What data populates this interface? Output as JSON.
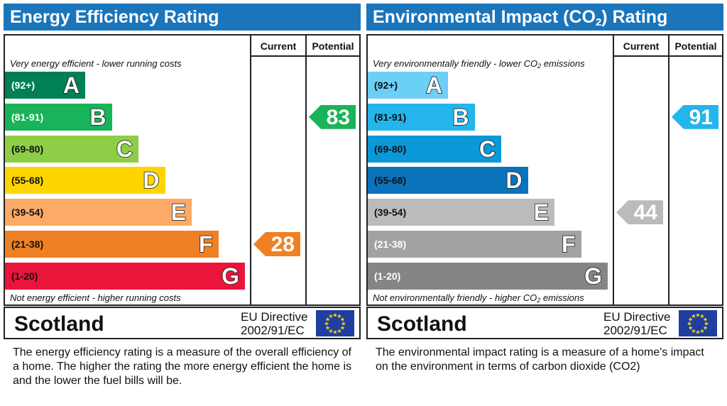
{
  "chart_data": [
    {
      "type": "bar",
      "title": "Energy Efficiency Rating",
      "categories": [
        "A",
        "B",
        "C",
        "D",
        "E",
        "F",
        "G"
      ],
      "ranges": [
        "(92+)",
        "(81-91)",
        "(69-80)",
        "(55-68)",
        "(39-54)",
        "(21-38)",
        "(1-20)"
      ],
      "colors": [
        "#008054",
        "#19b459",
        "#8dce46",
        "#ffd500",
        "#fcaa65",
        "#ef8023",
        "#e9153b"
      ],
      "columns": {
        "current": "Current",
        "potential": "Potential"
      },
      "current": 28,
      "potential": 83,
      "current_band": "F",
      "potential_band": "B",
      "current_color": "#ef8023",
      "potential_color": "#19b459",
      "top_note": "Very energy efficient - lower running costs",
      "bottom_note": "Not energy efficient - higher running costs"
    },
    {
      "type": "bar",
      "title": "Environmental Impact (CO2) Rating",
      "title_parts": [
        "Environmental Impact (CO",
        "2",
        ") Rating"
      ],
      "categories": [
        "A",
        "B",
        "C",
        "D",
        "E",
        "F",
        "G"
      ],
      "ranges": [
        "(92+)",
        "(81-91)",
        "(69-80)",
        "(55-68)",
        "(39-54)",
        "(21-38)",
        "(1-20)"
      ],
      "colors": [
        "#6ccff6",
        "#23b5eb",
        "#0a98d8",
        "#0b73bb",
        "#bbbbbb",
        "#a2a2a2",
        "#858585"
      ],
      "columns": {
        "current": "Current",
        "potential": "Potential"
      },
      "current": 44,
      "potential": 91,
      "current_band": "E",
      "potential_band": "B",
      "current_color": "#bbbbbb",
      "potential_color": "#23b5eb",
      "top_note_parts": [
        "Very environmentally friendly - lower CO",
        "2",
        " emissions"
      ],
      "bottom_note_parts": [
        "Not environmentally friendly - higher CO",
        "2",
        " emissions"
      ]
    }
  ],
  "footer": {
    "region": "Scotland",
    "directive_line1": "EU Directive",
    "directive_line2": "2002/91/EC",
    "flag_icon": "eu-flag-icon"
  },
  "descriptions": {
    "energy": "The energy efficiency rating is a measure of the overall efficiency of a home.  The higher the rating the more energy efficient the home is and the lower the fuel bills will be.",
    "environment": "The environmental impact rating is a measure of a home's impact on the environment in terms of carbon dioxide (CO2)"
  }
}
